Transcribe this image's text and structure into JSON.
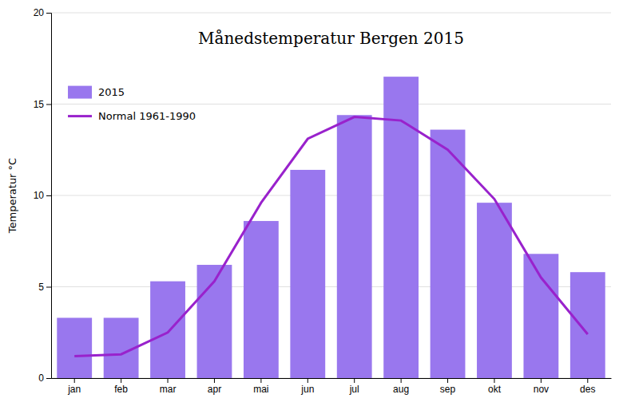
{
  "chart_data": {
    "type": "bar",
    "title": "Månedstemperatur Bergen 2015",
    "ylabel": "Temperatur °C",
    "categories": [
      "jan",
      "feb",
      "mar",
      "apr",
      "mai",
      "jun",
      "jul",
      "aug",
      "sep",
      "okt",
      "nov",
      "des"
    ],
    "series": [
      {
        "name": "2015",
        "type": "bar",
        "color": "#9977EE",
        "values": [
          3.3,
          3.3,
          5.3,
          6.2,
          8.6,
          11.4,
          14.4,
          16.5,
          13.6,
          9.6,
          6.8,
          5.8
        ]
      },
      {
        "name": "Normal 1961-1990",
        "type": "line",
        "color": "#9922CC",
        "values": [
          1.2,
          1.3,
          2.5,
          5.3,
          9.6,
          13.1,
          14.3,
          14.1,
          12.5,
          9.8,
          5.5,
          2.4
        ]
      }
    ],
    "ylim": [
      0,
      20
    ],
    "yticks": [
      0,
      5,
      10,
      15,
      20
    ],
    "grid": true,
    "legend": "upper left"
  }
}
